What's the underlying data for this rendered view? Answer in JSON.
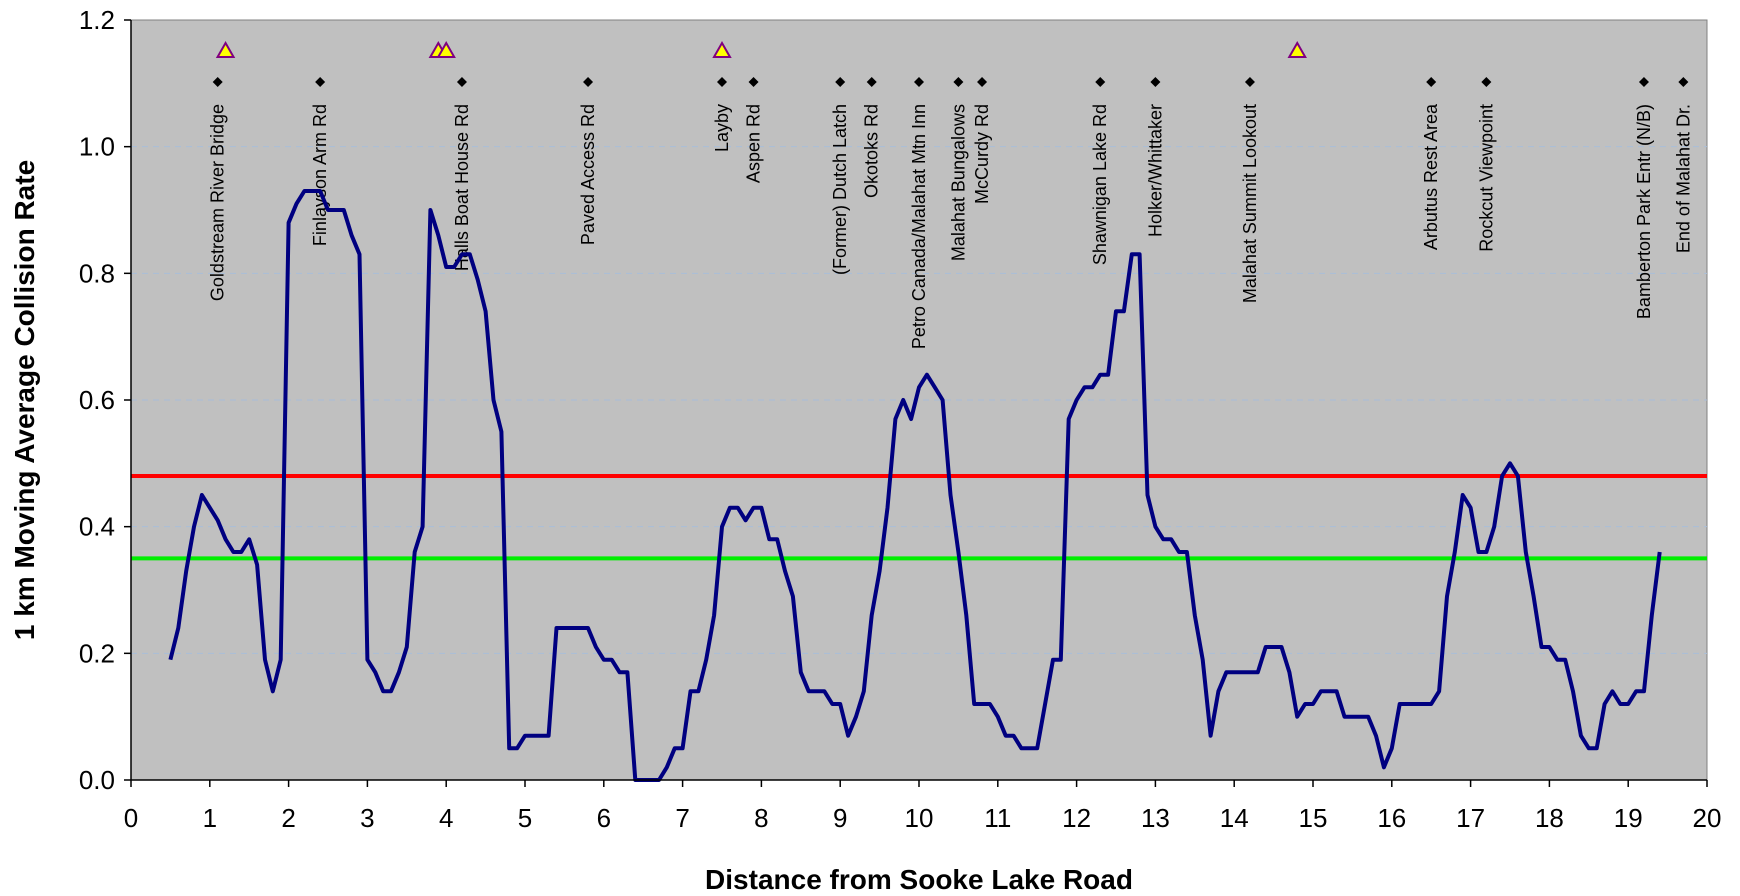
{
  "chart_data": {
    "type": "line",
    "xlabel": "Distance from Sooke Lake Road",
    "ylabel": "1 km Moving Average Collision Rate",
    "xlim": [
      0,
      20
    ],
    "ylim": [
      0,
      1.2
    ],
    "x_ticks": [
      0,
      1,
      2,
      3,
      4,
      5,
      6,
      7,
      8,
      9,
      10,
      11,
      12,
      13,
      14,
      15,
      16,
      17,
      18,
      19,
      20
    ],
    "y_ticks": [
      "0.0",
      "0.2",
      "0.4",
      "0.6",
      "0.8",
      "1.0",
      "1.2"
    ],
    "grid": "horizontal dashed",
    "colors": {
      "plot_background": "#c0c0c0",
      "series": "#000080",
      "upper_threshold": "#ff0000",
      "lower_threshold": "#00ee00",
      "marker_fill": "#ffff00",
      "marker_stroke": "#800080"
    },
    "thresholds": [
      {
        "color": "red",
        "value": 0.48
      },
      {
        "color": "green",
        "value": 0.35
      }
    ],
    "landmarks": [
      {
        "x": 1.1,
        "label": "Goldstream River Bridge"
      },
      {
        "x": 2.4,
        "label": "Finlayson Arm Rd"
      },
      {
        "x": 4.2,
        "label": "Halls Boat House Rd"
      },
      {
        "x": 5.8,
        "label": "Paved Access Rd"
      },
      {
        "x": 7.5,
        "label": "Layby"
      },
      {
        "x": 7.9,
        "label": "Aspen Rd"
      },
      {
        "x": 9.0,
        "label": "(Former) Dutch Latch"
      },
      {
        "x": 9.4,
        "label": "Okotoks Rd"
      },
      {
        "x": 10.0,
        "label": "Petro Canada/Malahat Mtn Inn"
      },
      {
        "x": 10.5,
        "label": "Malahat Bungalows"
      },
      {
        "x": 10.8,
        "label": "McCurdy Rd"
      },
      {
        "x": 12.3,
        "label": "Shawnigan Lake Rd"
      },
      {
        "x": 13.0,
        "label": "Holker/Whittaker"
      },
      {
        "x": 14.2,
        "label": "Malahat Summit Lookout"
      },
      {
        "x": 16.5,
        "label": "Arbutus Rest Area"
      },
      {
        "x": 17.2,
        "label": "Rockcut Viewpoint"
      },
      {
        "x": 19.2,
        "label": "Bamberton Park Entr (N/B)"
      },
      {
        "x": 19.7,
        "label": "End of Malahat Dr."
      }
    ],
    "triangle_markers": [
      1.2,
      3.9,
      4.0,
      7.5,
      14.8
    ],
    "series": [
      {
        "x": [
          0.5,
          0.6,
          0.7,
          0.8,
          0.9,
          1.0,
          1.1,
          1.2,
          1.3,
          1.4,
          1.5,
          1.6,
          1.7,
          1.8,
          1.9,
          2.0,
          2.1,
          2.2,
          2.3,
          2.4,
          2.5,
          2.6,
          2.7,
          2.8,
          2.9,
          3.0,
          3.1,
          3.2,
          3.3,
          3.4,
          3.5,
          3.6,
          3.7,
          3.8,
          3.9,
          4.0,
          4.1,
          4.2,
          4.3,
          4.4,
          4.5,
          4.6,
          4.7,
          4.8,
          4.9,
          5.0,
          5.1,
          5.2,
          5.3,
          5.4,
          5.5,
          5.6,
          5.7,
          5.8,
          5.9,
          6.0,
          6.1,
          6.2,
          6.3,
          6.4,
          6.5,
          6.6,
          6.7,
          6.8,
          6.9,
          7.0,
          7.1,
          7.2,
          7.3,
          7.4,
          7.5,
          7.6,
          7.7,
          7.8,
          7.9,
          8.0,
          8.1,
          8.2,
          8.3,
          8.4,
          8.5,
          8.6,
          8.7,
          8.8,
          8.9,
          9.0,
          9.1,
          9.2,
          9.3,
          9.4,
          9.5,
          9.6,
          9.7,
          9.8,
          9.9,
          10.0,
          10.1,
          10.2,
          10.3,
          10.4,
          10.5,
          10.6,
          10.7,
          10.8,
          10.9,
          11.0,
          11.1,
          11.2,
          11.3,
          11.4,
          11.5,
          11.6,
          11.7,
          11.8,
          11.9,
          12.0,
          12.1,
          12.2,
          12.3,
          12.4,
          12.5,
          12.6,
          12.7,
          12.8,
          12.9,
          13.0,
          13.1,
          13.2,
          13.3,
          13.4,
          13.5,
          13.6,
          13.7,
          13.8,
          13.9,
          14.0,
          14.1,
          14.2,
          14.3,
          14.4,
          14.5,
          14.6,
          14.7,
          14.8,
          14.9,
          15.0,
          15.1,
          15.2,
          15.3,
          15.4,
          15.5,
          15.6,
          15.7,
          15.8,
          15.9,
          16.0,
          16.1,
          16.2,
          16.3,
          16.4,
          16.5,
          16.6,
          16.7,
          16.8,
          16.9,
          17.0,
          17.1,
          17.2,
          17.3,
          17.4,
          17.5,
          17.6,
          17.7,
          17.8,
          17.9,
          18.0,
          18.1,
          18.2,
          18.3,
          18.4,
          18.5,
          18.6,
          18.7,
          18.8,
          18.9,
          19.0,
          19.1,
          19.2,
          19.3,
          19.4
        ],
        "y": [
          0.19,
          0.24,
          0.33,
          0.4,
          0.45,
          0.43,
          0.41,
          0.38,
          0.36,
          0.36,
          0.38,
          0.34,
          0.19,
          0.14,
          0.19,
          0.88,
          0.91,
          0.93,
          0.93,
          0.93,
          0.9,
          0.9,
          0.9,
          0.86,
          0.83,
          0.19,
          0.17,
          0.14,
          0.14,
          0.17,
          0.21,
          0.36,
          0.4,
          0.9,
          0.86,
          0.81,
          0.81,
          0.83,
          0.83,
          0.79,
          0.74,
          0.6,
          0.55,
          0.05,
          0.05,
          0.07,
          0.07,
          0.07,
          0.07,
          0.24,
          0.24,
          0.24,
          0.24,
          0.24,
          0.21,
          0.19,
          0.19,
          0.17,
          0.17,
          0.0,
          0.0,
          0.0,
          0.0,
          0.02,
          0.05,
          0.05,
          0.14,
          0.14,
          0.19,
          0.26,
          0.4,
          0.43,
          0.43,
          0.41,
          0.43,
          0.43,
          0.38,
          0.38,
          0.33,
          0.29,
          0.17,
          0.14,
          0.14,
          0.14,
          0.12,
          0.12,
          0.07,
          0.1,
          0.14,
          0.26,
          0.33,
          0.43,
          0.57,
          0.6,
          0.57,
          0.62,
          0.64,
          0.62,
          0.6,
          0.45,
          0.36,
          0.26,
          0.12,
          0.12,
          0.12,
          0.1,
          0.07,
          0.07,
          0.05,
          0.05,
          0.05,
          0.12,
          0.19,
          0.19,
          0.57,
          0.6,
          0.62,
          0.62,
          0.64,
          0.64,
          0.74,
          0.74,
          0.83,
          0.83,
          0.45,
          0.4,
          0.38,
          0.38,
          0.36,
          0.36,
          0.26,
          0.19,
          0.07,
          0.14,
          0.17,
          0.17,
          0.17,
          0.17,
          0.17,
          0.21,
          0.21,
          0.21,
          0.17,
          0.1,
          0.12,
          0.12,
          0.14,
          0.14,
          0.14,
          0.1,
          0.1,
          0.1,
          0.1,
          0.07,
          0.02,
          0.05,
          0.12,
          0.12,
          0.12,
          0.12,
          0.12,
          0.14,
          0.29,
          0.36,
          0.45,
          0.43,
          0.36,
          0.36,
          0.4,
          0.48,
          0.5,
          0.48,
          0.36,
          0.29,
          0.21,
          0.21,
          0.19,
          0.19,
          0.14,
          0.07,
          0.05,
          0.05,
          0.12,
          0.14,
          0.12,
          0.12,
          0.14,
          0.14,
          0.26,
          0.36
        ]
      }
    ]
  }
}
